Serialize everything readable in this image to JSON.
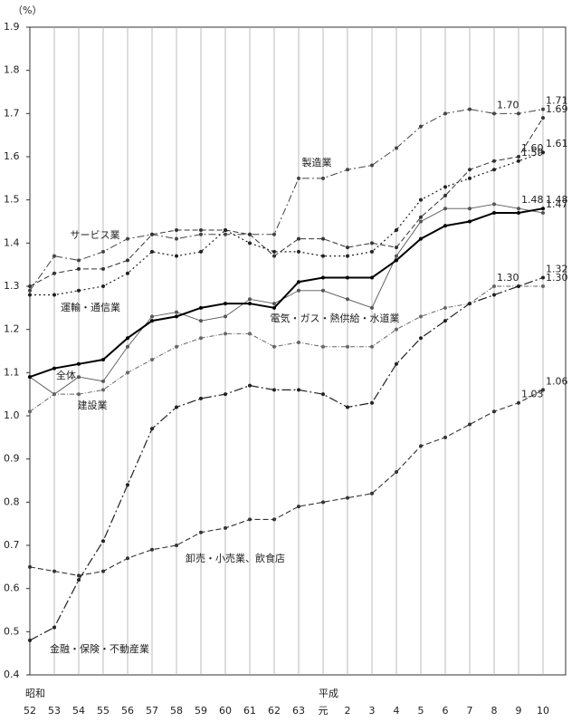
{
  "chart_data": {
    "type": "line",
    "y_axis_label": "（%）",
    "categories": [
      "52",
      "53",
      "54",
      "55",
      "56",
      "57",
      "58",
      "59",
      "60",
      "61",
      "62",
      "63",
      "元",
      "2",
      "3",
      "4",
      "5",
      "6",
      "7",
      "8",
      "9",
      "10"
    ],
    "era_labels": [
      "昭和",
      null,
      null,
      null,
      null,
      null,
      null,
      null,
      null,
      null,
      null,
      null,
      "平成",
      null,
      null,
      null,
      null,
      null,
      null,
      null,
      null,
      null
    ],
    "ylim": [
      0.4,
      1.9
    ],
    "yticks": [
      0.4,
      0.5,
      0.6,
      0.7,
      0.8,
      0.9,
      {
        "value": 1,
        "label": "1.0"
      },
      1.1,
      1.2,
      1.3,
      1.4,
      1.5,
      1.6,
      1.7,
      1.8,
      1.9
    ],
    "grid": true,
    "series": [
      {
        "name": "製造業",
        "color": "#444",
        "values": [
          1.29,
          1.37,
          1.36,
          1.38,
          1.41,
          1.42,
          1.41,
          1.42,
          1.42,
          1.42,
          1.42,
          1.55,
          1.55,
          1.57,
          1.58,
          1.62,
          1.67,
          1.7,
          1.71,
          1.7,
          1.7,
          1.71
        ],
        "value_labels": [
          null,
          null,
          null,
          null,
          null,
          null,
          null,
          null,
          null,
          null,
          null,
          null,
          null,
          null,
          null,
          null,
          null,
          null,
          null,
          "1.70",
          null,
          "1.71"
        ]
      },
      {
        "name": "サービス業",
        "color": "#333",
        "values": [
          1.3,
          1.33,
          1.34,
          1.34,
          1.36,
          1.42,
          1.43,
          1.43,
          1.43,
          1.42,
          1.37,
          1.41,
          1.41,
          1.39,
          1.4,
          1.39,
          1.46,
          1.51,
          1.57,
          1.59,
          1.6,
          1.69
        ],
        "value_labels": [
          null,
          null,
          null,
          null,
          null,
          null,
          null,
          null,
          null,
          null,
          null,
          null,
          null,
          null,
          null,
          null,
          null,
          null,
          null,
          null,
          "1.60",
          "1.69"
        ]
      },
      {
        "name": "運輸・通信業",
        "color": "#222",
        "values": [
          1.28,
          1.28,
          1.29,
          1.3,
          1.33,
          1.38,
          1.37,
          1.38,
          1.43,
          1.4,
          1.38,
          1.38,
          1.37,
          1.37,
          1.38,
          1.43,
          1.5,
          1.53,
          1.55,
          1.57,
          1.59,
          1.61
        ],
        "value_labels": [
          null,
          null,
          null,
          null,
          null,
          null,
          null,
          null,
          null,
          null,
          null,
          null,
          null,
          null,
          null,
          null,
          null,
          null,
          null,
          null,
          "1.59",
          "1.61"
        ]
      },
      {
        "name": "電気・ガス・熱供給・水道業",
        "color": "#555",
        "values": [
          1.09,
          1.05,
          1.09,
          1.08,
          1.16,
          1.23,
          1.24,
          1.22,
          1.23,
          1.27,
          1.26,
          1.29,
          1.29,
          1.27,
          1.25,
          1.37,
          1.45,
          1.48,
          1.48,
          1.49,
          1.48,
          1.47
        ],
        "value_labels": [
          null,
          null,
          null,
          null,
          null,
          null,
          null,
          null,
          null,
          null,
          null,
          null,
          null,
          null,
          null,
          null,
          null,
          null,
          null,
          null,
          "1.48",
          "1.47"
        ]
      },
      {
        "name": "全体",
        "color": "#000",
        "values": [
          1.09,
          1.11,
          1.12,
          1.13,
          1.18,
          1.22,
          1.23,
          1.25,
          1.26,
          1.26,
          1.25,
          1.31,
          1.32,
          1.32,
          1.32,
          1.36,
          1.41,
          1.44,
          1.45,
          1.47,
          1.47,
          1.48
        ],
        "value_labels": [
          null,
          null,
          null,
          null,
          null,
          null,
          null,
          null,
          null,
          null,
          null,
          null,
          null,
          null,
          null,
          null,
          null,
          null,
          null,
          null,
          null,
          "1.48"
        ]
      },
      {
        "name": "建設業",
        "color": "#666",
        "values": [
          1.01,
          1.05,
          1.05,
          1.06,
          1.1,
          1.13,
          1.16,
          1.18,
          1.19,
          1.19,
          1.16,
          1.17,
          1.16,
          1.16,
          1.16,
          1.2,
          1.23,
          1.25,
          1.26,
          1.3,
          1.3,
          1.3
        ],
        "value_labels": [
          null,
          null,
          null,
          null,
          null,
          null,
          null,
          null,
          null,
          null,
          null,
          null,
          null,
          null,
          null,
          null,
          null,
          null,
          null,
          "1.30",
          null,
          "1.30"
        ]
      },
      {
        "name": "卸売・小売業、飲食店",
        "color": "#333",
        "values": [
          0.65,
          0.64,
          0.63,
          0.64,
          0.67,
          0.69,
          0.7,
          0.73,
          0.74,
          0.76,
          0.76,
          0.79,
          0.8,
          0.81,
          0.82,
          0.87,
          0.93,
          0.95,
          0.98,
          1.01,
          1.03,
          1.06
        ],
        "value_labels": [
          null,
          null,
          null,
          null,
          null,
          null,
          null,
          null,
          null,
          null,
          null,
          null,
          null,
          null,
          null,
          null,
          null,
          null,
          null,
          null,
          "1.03",
          "1.06"
        ]
      },
      {
        "name": "金融・保険・不動産業",
        "color": "#222",
        "values": [
          0.48,
          0.51,
          0.62,
          0.71,
          0.84,
          0.97,
          1.02,
          1.04,
          1.05,
          1.07,
          1.06,
          1.06,
          1.05,
          1.02,
          1.03,
          1.12,
          1.18,
          1.22,
          1.26,
          1.28,
          1.3,
          1.32
        ],
        "value_labels": [
          null,
          null,
          null,
          null,
          null,
          null,
          null,
          null,
          null,
          null,
          null,
          null,
          null,
          null,
          null,
          null,
          null,
          null,
          null,
          null,
          null,
          "1.32"
        ]
      }
    ]
  }
}
